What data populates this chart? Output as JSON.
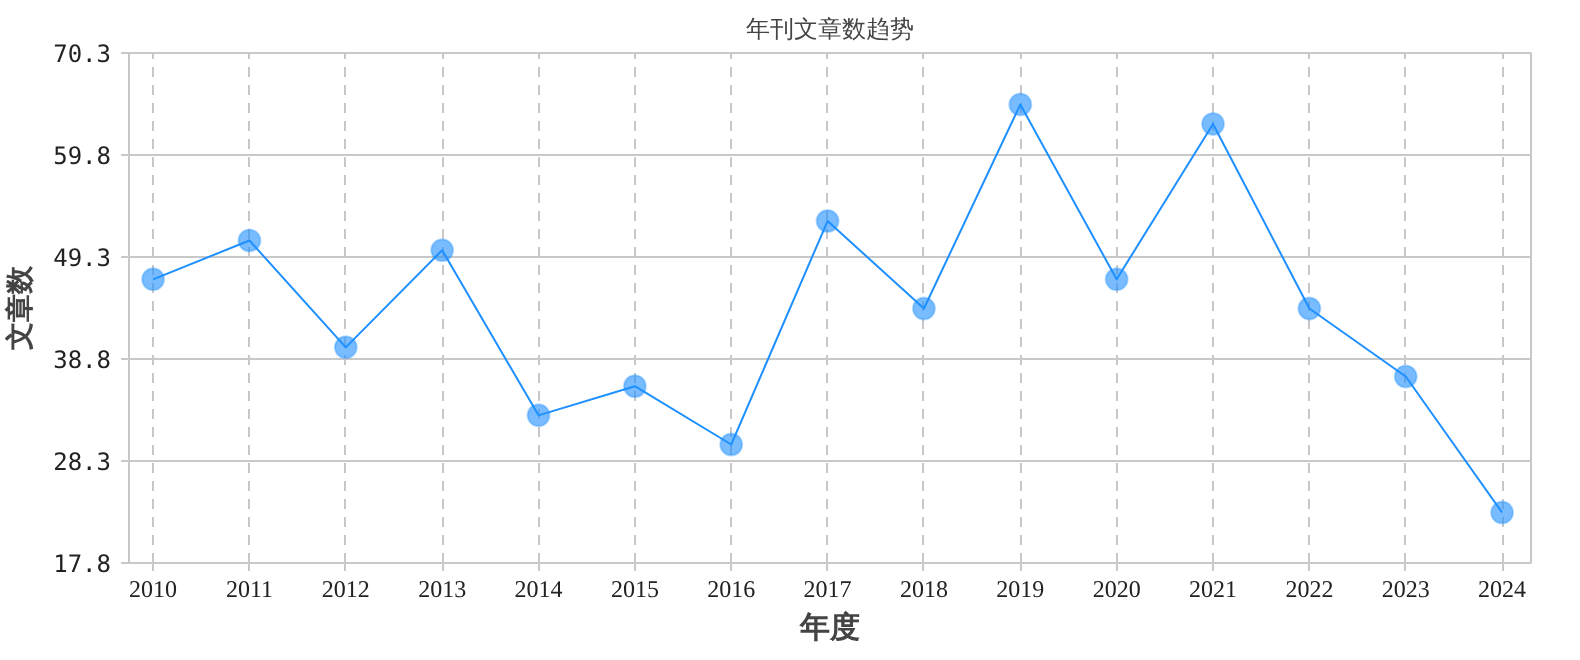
{
  "chart_data": {
    "type": "line",
    "title": "年刊文章数趋势",
    "xlabel": "年度",
    "ylabel": "文章数",
    "categories": [
      "2010",
      "2011",
      "2012",
      "2013",
      "2014",
      "2015",
      "2016",
      "2017",
      "2018",
      "2019",
      "2020",
      "2021",
      "2022",
      "2023",
      "2024"
    ],
    "series": [
      {
        "color": "#1e90ff",
        "values": [
          47,
          51,
          40,
          50,
          33,
          36,
          30,
          53,
          44,
          65,
          47,
          63,
          44,
          37,
          23
        ]
      }
    ],
    "ylim": [
      17.8,
      70.3
    ],
    "yticks": [
      17.8,
      28.3,
      38.8,
      49.3,
      59.8,
      70.3
    ],
    "grid": true,
    "marker": "circle",
    "line_style": "solid"
  }
}
